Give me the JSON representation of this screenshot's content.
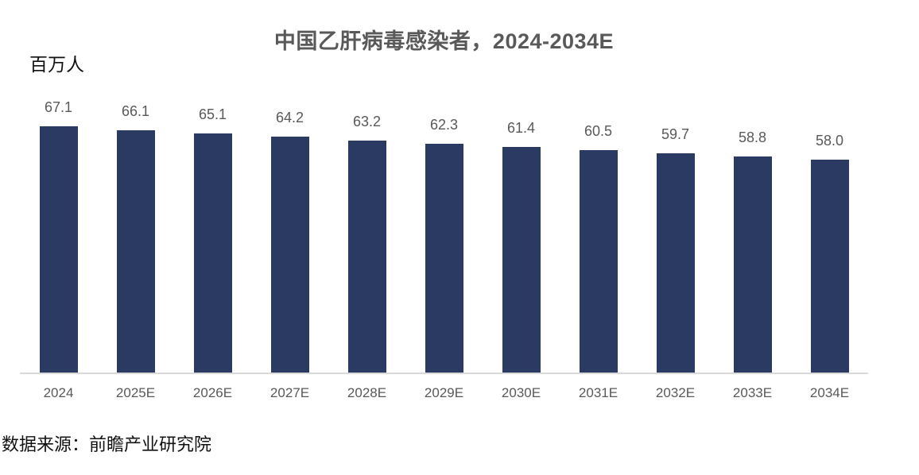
{
  "chart_data": {
    "type": "bar",
    "title": "中国乙肝病毒感染者，2024-2034E",
    "unit_label": "百万人",
    "categories": [
      "2024",
      "2025E",
      "2026E",
      "2027E",
      "2028E",
      "2029E",
      "2030E",
      "2031E",
      "2032E",
      "2033E",
      "2034E"
    ],
    "values": [
      67.1,
      66.1,
      65.1,
      64.2,
      63.2,
      62.3,
      61.4,
      60.5,
      59.7,
      58.8,
      58.0
    ],
    "xlabel": "",
    "ylabel": "百万人",
    "ylim": [
      0,
      67.1
    ],
    "grid": false,
    "legend": "none",
    "value_labels_shown": true,
    "bar_color": "#2A3A63",
    "value_label_color": "#595959",
    "category_label_color": "#595959",
    "axis_line_color": "#D9D9D9",
    "title_color": "#595959"
  },
  "footer": {
    "source_label": "数据来源：前瞻产业研究院"
  }
}
